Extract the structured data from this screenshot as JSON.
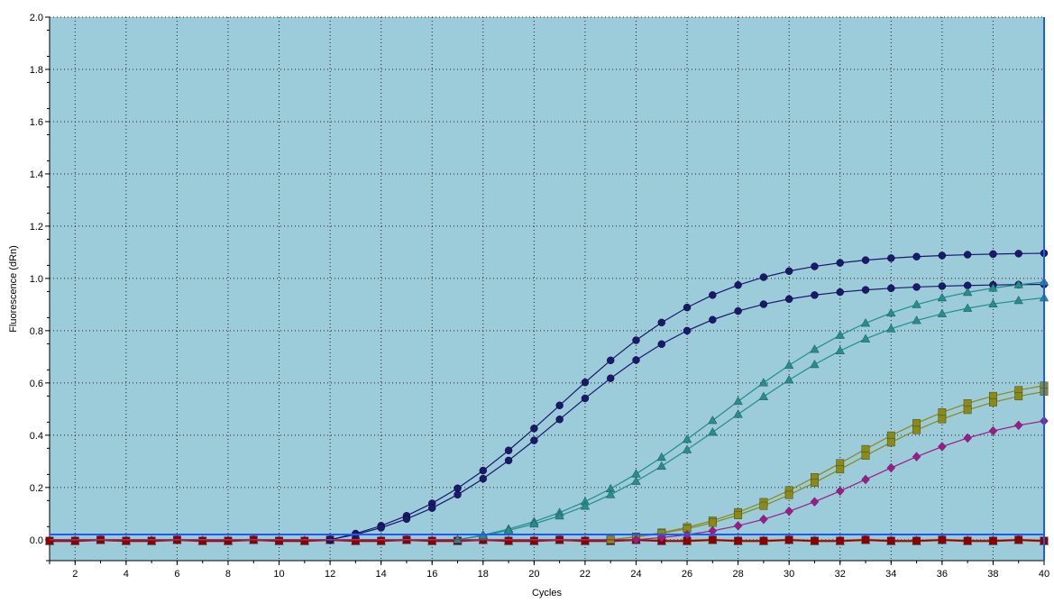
{
  "chart_data": {
    "type": "line",
    "title": "",
    "xlabel": "Cycles",
    "ylabel": "Fluorescence (dRn)",
    "xlim": [
      1,
      40
    ],
    "ylim": [
      -0.08,
      2.0
    ],
    "x_ticks": [
      2,
      4,
      6,
      8,
      10,
      12,
      14,
      16,
      18,
      20,
      22,
      24,
      26,
      28,
      30,
      32,
      34,
      36,
      38,
      40
    ],
    "x_tick_labels": [
      "2",
      "4",
      "6",
      "8",
      "10",
      "12",
      "14",
      "16",
      "18",
      "20",
      "22",
      "24",
      "26",
      "28",
      "30",
      "32",
      "34",
      "36",
      "38",
      "40"
    ],
    "y_ticks": [
      0.0,
      0.2,
      0.4,
      0.6,
      0.8,
      1.0,
      1.2,
      1.4,
      1.6,
      1.8,
      2.0
    ],
    "y_tick_labels": [
      "0.0",
      "0.2",
      "0.4",
      "0.6",
      "0.8",
      "1.0",
      "1.2",
      "1.4",
      "1.6",
      "1.8",
      "2.0"
    ],
    "grid": true,
    "background_color": "#9ccbd9",
    "threshold": {
      "y": 0.02,
      "color": "#1e5cf0"
    },
    "cursor_line": {
      "x": 40,
      "color": "#1e5cf0"
    },
    "sigmoid_series": [
      {
        "color": "#191970",
        "marker": "circle",
        "plateau": 1.1,
        "midpoint": 21.0,
        "slope": 3.3,
        "start": 12
      },
      {
        "color": "#191970",
        "marker": "circle",
        "plateau": 0.98,
        "midpoint": 21.0,
        "slope": 3.2,
        "start": 12
      },
      {
        "color": "#1f8f8f",
        "marker": "triangle",
        "plateau": 1.02,
        "midpoint": 27.3,
        "slope": 3.7,
        "start": 17
      },
      {
        "color": "#1f8f8f",
        "marker": "triangle",
        "plateau": 0.96,
        "midpoint": 27.6,
        "slope": 3.7,
        "start": 17
      },
      {
        "color": "#8a8a14",
        "marker": "square",
        "plateau": 0.64,
        "midpoint": 32.2,
        "slope": 3.1,
        "start": 23
      },
      {
        "color": "#8a8a14",
        "marker": "square",
        "plateau": 0.62,
        "midpoint": 32.5,
        "slope": 3.1,
        "start": 23
      },
      {
        "color": "#9c1a8a",
        "marker": "diamond",
        "plateau": 0.5,
        "midpoint": 33.2,
        "slope": 2.9,
        "start": 24
      }
    ],
    "flat_series": [
      {
        "color": "#d4651a",
        "marker": "diamond",
        "level": 0.0
      },
      {
        "color": "#b22222",
        "marker": "triangle",
        "level": -0.005
      },
      {
        "color": "#8b0000",
        "marker": "square",
        "level": -0.002
      }
    ]
  }
}
